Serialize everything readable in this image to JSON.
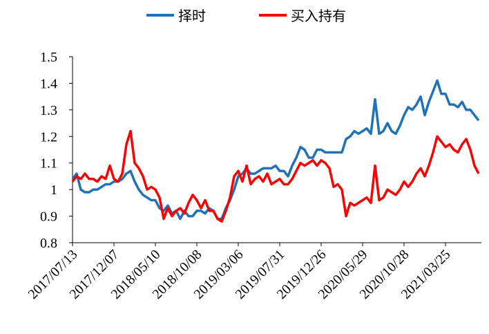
{
  "chart_data": {
    "type": "line",
    "categories": [
      "2017/07/13",
      null,
      null,
      null,
      null,
      null,
      null,
      null,
      null,
      null,
      "2017/12/07",
      null,
      null,
      null,
      null,
      null,
      null,
      null,
      null,
      null,
      "2018/05/10",
      null,
      null,
      null,
      null,
      null,
      null,
      null,
      null,
      null,
      "2018/10/08",
      null,
      null,
      null,
      null,
      null,
      null,
      null,
      null,
      null,
      "2019/03/06",
      null,
      null,
      null,
      null,
      null,
      null,
      null,
      null,
      null,
      "2019/07/31",
      null,
      null,
      null,
      null,
      null,
      null,
      null,
      null,
      null,
      "2019/12/26",
      null,
      null,
      null,
      null,
      null,
      null,
      null,
      null,
      null,
      "2020/05/29",
      null,
      null,
      null,
      null,
      null,
      null,
      null,
      null,
      null,
      "2020/10/28",
      null,
      null,
      null,
      null,
      null,
      null,
      null,
      null,
      null,
      "2021/03/25",
      null,
      null,
      null,
      null,
      null,
      null,
      null,
      null
    ],
    "series": [
      {
        "name": "择时",
        "color": "#1f72b8",
        "values": [
          1.04,
          1.06,
          1.0,
          0.99,
          0.99,
          1.0,
          1.0,
          1.01,
          1.02,
          1.02,
          1.03,
          1.03,
          1.04,
          1.06,
          1.07,
          1.03,
          1.0,
          0.98,
          0.97,
          0.96,
          0.96,
          0.93,
          0.92,
          0.94,
          0.91,
          0.92,
          0.89,
          0.92,
          0.9,
          0.9,
          0.92,
          0.92,
          0.91,
          0.93,
          0.92,
          0.89,
          0.89,
          0.93,
          0.96,
          1.0,
          1.05,
          1.06,
          1.08,
          1.06,
          1.06,
          1.07,
          1.08,
          1.08,
          1.08,
          1.09,
          1.07,
          1.07,
          1.05,
          1.09,
          1.12,
          1.16,
          1.15,
          1.12,
          1.12,
          1.15,
          1.15,
          1.14,
          1.14,
          1.14,
          1.14,
          1.14,
          1.19,
          1.2,
          1.22,
          1.21,
          1.22,
          1.23,
          1.21,
          1.34,
          1.21,
          1.22,
          1.25,
          1.22,
          1.21,
          1.24,
          1.28,
          1.31,
          1.3,
          1.32,
          1.35,
          1.28,
          1.33,
          1.37,
          1.41,
          1.36,
          1.36,
          1.32,
          1.32,
          1.31,
          1.33,
          1.3,
          1.3,
          1.28,
          1.26
        ]
      },
      {
        "name": "买入持有",
        "color": "#ff0000",
        "values": [
          1.03,
          1.05,
          1.04,
          1.06,
          1.04,
          1.04,
          1.03,
          1.05,
          1.04,
          1.09,
          1.04,
          1.03,
          1.06,
          1.17,
          1.22,
          1.1,
          1.08,
          1.05,
          1.0,
          1.01,
          1.0,
          0.97,
          0.89,
          0.93,
          0.9,
          0.92,
          0.93,
          0.91,
          0.95,
          0.98,
          0.96,
          0.93,
          0.96,
          0.92,
          0.92,
          0.89,
          0.88,
          0.92,
          0.97,
          1.05,
          1.07,
          1.03,
          1.09,
          1.02,
          1.04,
          1.05,
          1.03,
          1.06,
          1.02,
          1.03,
          1.04,
          1.02,
          1.02,
          1.04,
          1.07,
          1.1,
          1.09,
          1.1,
          1.11,
          1.09,
          1.11,
          1.1,
          1.08,
          1.01,
          1.02,
          1.0,
          0.9,
          0.95,
          0.94,
          0.95,
          0.96,
          0.97,
          0.95,
          1.09,
          0.96,
          0.97,
          1.0,
          0.99,
          0.98,
          1.0,
          1.03,
          1.01,
          1.03,
          1.06,
          1.08,
          1.05,
          1.09,
          1.14,
          1.2,
          1.18,
          1.16,
          1.17,
          1.15,
          1.14,
          1.17,
          1.19,
          1.15,
          1.09,
          1.06
        ]
      }
    ],
    "ylim": [
      0.8,
      1.5
    ],
    "yticks": [
      0.8,
      0.9,
      1,
      1.1,
      1.2,
      1.3,
      1.4,
      1.5
    ],
    "legend": "top"
  }
}
